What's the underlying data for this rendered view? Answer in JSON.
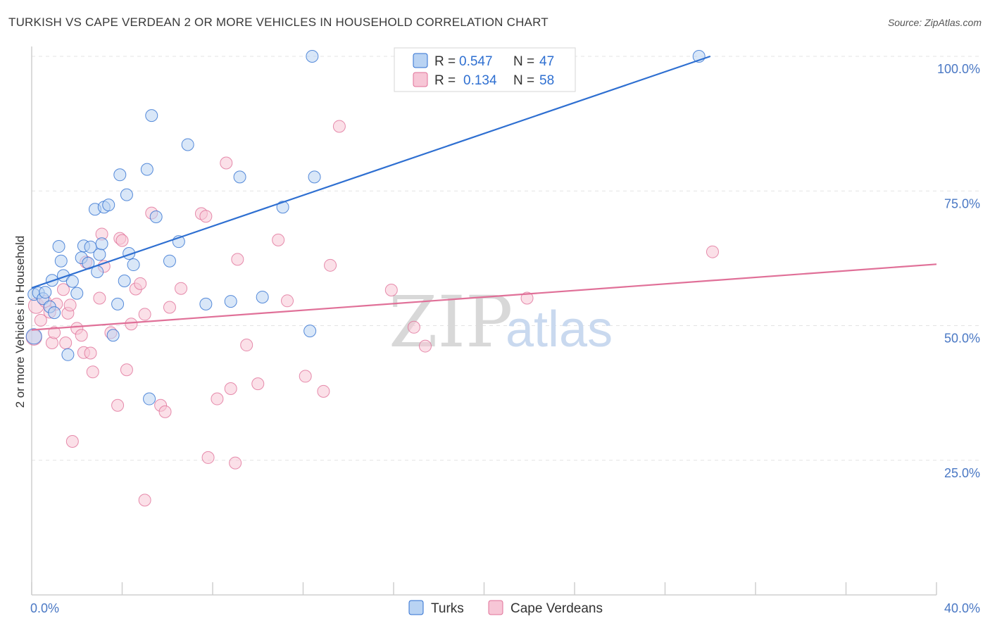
{
  "header": {
    "title": "TURKISH VS CAPE VERDEAN 2 OR MORE VEHICLES IN HOUSEHOLD CORRELATION CHART",
    "source": "Source: ZipAtlas.com"
  },
  "watermark": {
    "zip": "ZIP",
    "atlas": "atlas"
  },
  "colors": {
    "turks": "#2e6fd1",
    "turks_fill": "#b9d3f3",
    "cape": "#e07098",
    "cape_fill": "#f7c6d6",
    "axis": "#cfcfcf",
    "grid": "#e3e3e3"
  },
  "legend": {
    "turks": {
      "r_label": "R = ",
      "r_value": "0.547",
      "n_label": "N = ",
      "n_value": "47"
    },
    "cape": {
      "r_label": "R = ",
      "r_value": "0.134",
      "n_label": "N = ",
      "n_value": "58"
    }
  },
  "chart_data": {
    "type": "scatter",
    "xlabel": "",
    "ylabel": "2 or more Vehicles in Household",
    "xlim": [
      0,
      40
    ],
    "ylim": [
      0,
      100
    ],
    "x_ticks": [
      "0.0%",
      "40.0%"
    ],
    "y_ticks": [
      {
        "value": 100,
        "label": "100.0%"
      },
      {
        "value": 75,
        "label": "75.0%"
      },
      {
        "value": 50,
        "label": "50.0%"
      },
      {
        "value": 25,
        "label": "25.0%"
      }
    ],
    "grid": true,
    "legend_position": "top-center",
    "series": [
      {
        "name": "Turks",
        "color": "#2e6fd1",
        "trend": {
          "x": [
            0,
            30
          ],
          "y": [
            57.0,
            100.0
          ]
        },
        "points": [
          [
            0.1,
            55.8
          ],
          [
            0.1,
            48.0
          ],
          [
            0.3,
            56.1
          ],
          [
            0.5,
            55.0
          ],
          [
            0.6,
            56.2
          ],
          [
            0.8,
            53.5
          ],
          [
            0.9,
            58.4
          ],
          [
            1.0,
            52.4
          ],
          [
            1.2,
            64.7
          ],
          [
            1.3,
            62.0
          ],
          [
            1.4,
            59.3
          ],
          [
            1.6,
            44.6
          ],
          [
            1.8,
            58.2
          ],
          [
            2.0,
            56.0
          ],
          [
            2.2,
            62.6
          ],
          [
            2.3,
            64.8
          ],
          [
            2.5,
            61.6
          ],
          [
            2.6,
            64.6
          ],
          [
            2.8,
            71.6
          ],
          [
            2.9,
            60.0
          ],
          [
            3.0,
            63.2
          ],
          [
            3.1,
            65.2
          ],
          [
            3.2,
            72.0
          ],
          [
            3.4,
            72.4
          ],
          [
            3.6,
            48.2
          ],
          [
            3.8,
            54.0
          ],
          [
            3.9,
            78.0
          ],
          [
            4.1,
            58.3
          ],
          [
            4.2,
            74.3
          ],
          [
            4.3,
            63.4
          ],
          [
            4.5,
            61.3
          ],
          [
            5.1,
            79.0
          ],
          [
            5.2,
            36.4
          ],
          [
            5.3,
            89.0
          ],
          [
            5.5,
            70.2
          ],
          [
            6.1,
            62.0
          ],
          [
            6.5,
            65.6
          ],
          [
            6.9,
            83.6
          ],
          [
            7.7,
            54.0
          ],
          [
            8.8,
            54.5
          ],
          [
            9.2,
            77.6
          ],
          [
            10.2,
            55.3
          ],
          [
            11.1,
            72.0
          ],
          [
            12.3,
            49.0
          ],
          [
            12.5,
            77.6
          ],
          [
            12.4,
            100.0
          ],
          [
            29.5,
            100.0
          ]
        ]
      },
      {
        "name": "Cape Verdeans",
        "color": "#e07098",
        "trend": {
          "x": [
            0,
            40
          ],
          "y": [
            49.2,
            61.4
          ]
        },
        "points": [
          [
            0.1,
            47.8
          ],
          [
            0.2,
            53.7
          ],
          [
            0.4,
            51.0
          ],
          [
            0.6,
            54.5
          ],
          [
            0.8,
            52.5
          ],
          [
            0.9,
            46.8
          ],
          [
            1.0,
            48.7
          ],
          [
            1.1,
            54.0
          ],
          [
            1.4,
            56.7
          ],
          [
            1.5,
            46.8
          ],
          [
            1.6,
            52.3
          ],
          [
            1.7,
            53.8
          ],
          [
            1.8,
            28.5
          ],
          [
            2.0,
            49.5
          ],
          [
            2.2,
            48.2
          ],
          [
            2.3,
            45.0
          ],
          [
            2.4,
            61.8
          ],
          [
            2.6,
            44.9
          ],
          [
            2.7,
            41.4
          ],
          [
            3.0,
            55.1
          ],
          [
            3.1,
            67.0
          ],
          [
            3.2,
            61.0
          ],
          [
            3.5,
            48.7
          ],
          [
            3.8,
            35.2
          ],
          [
            3.9,
            66.2
          ],
          [
            4.0,
            65.8
          ],
          [
            4.2,
            41.8
          ],
          [
            4.4,
            50.3
          ],
          [
            4.6,
            56.8
          ],
          [
            4.8,
            57.8
          ],
          [
            5.0,
            52.1
          ],
          [
            5.0,
            17.6
          ],
          [
            5.3,
            70.9
          ],
          [
            5.7,
            35.2
          ],
          [
            5.9,
            34.0
          ],
          [
            6.1,
            53.4
          ],
          [
            6.6,
            56.9
          ],
          [
            7.5,
            70.8
          ],
          [
            7.7,
            70.3
          ],
          [
            7.8,
            25.5
          ],
          [
            8.2,
            36.4
          ],
          [
            8.6,
            80.2
          ],
          [
            8.8,
            38.3
          ],
          [
            9.0,
            24.5
          ],
          [
            9.1,
            62.3
          ],
          [
            9.5,
            46.4
          ],
          [
            10.0,
            39.2
          ],
          [
            10.9,
            65.9
          ],
          [
            11.3,
            54.6
          ],
          [
            12.1,
            40.6
          ],
          [
            12.9,
            37.8
          ],
          [
            13.2,
            61.2
          ],
          [
            13.6,
            87.0
          ],
          [
            15.9,
            56.6
          ],
          [
            16.9,
            49.7
          ],
          [
            17.4,
            46.2
          ],
          [
            21.9,
            55.1
          ],
          [
            30.1,
            63.7
          ]
        ]
      }
    ]
  }
}
